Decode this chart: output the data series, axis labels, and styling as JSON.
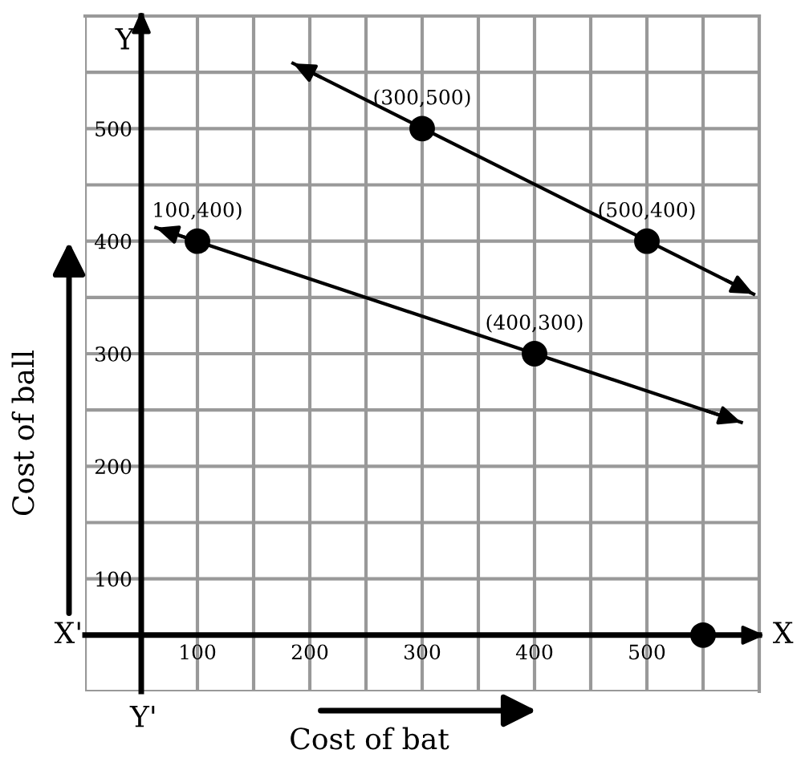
{
  "chart_data": {
    "type": "line",
    "xlabel": "Cost of bat",
    "ylabel": "Cost of ball",
    "xlim": [
      0,
      600
    ],
    "ylim": [
      0,
      600
    ],
    "xticks": [
      {
        "value": 0,
        "label": null
      },
      {
        "value": 50,
        "label": null
      },
      100,
      {
        "value": 150,
        "label": null
      },
      200,
      {
        "value": 250,
        "label": null
      },
      300,
      {
        "value": 350,
        "label": null
      },
      400,
      {
        "value": 450,
        "label": null
      },
      500,
      {
        "value": 550,
        "label": null
      },
      {
        "value": 600,
        "label": null
      }
    ],
    "yticks": [
      {
        "value": 0,
        "label": null
      },
      {
        "value": 50,
        "label": null
      },
      100,
      {
        "value": 150,
        "label": null
      },
      200,
      {
        "value": 250,
        "label": null
      },
      300,
      {
        "value": 350,
        "label": null
      },
      400,
      {
        "value": 450,
        "label": null
      },
      500,
      {
        "value": 550,
        "label": null
      },
      {
        "value": 600,
        "label": null
      }
    ],
    "grid": true,
    "series": [
      {
        "x": [
          185,
          595
        ],
        "values": [
          558,
          353
        ],
        "color": "#000000"
      },
      {
        "x": [
          63,
          584
        ],
        "values": [
          412,
          239
        ],
        "color": "#000000"
      },
      {
        "type": "scatter",
        "x": [
          100,
          300,
          400,
          500,
          550
        ],
        "values": [
          400,
          500,
          300,
          400,
          50
        ],
        "color": "#000000",
        "marker": "circle"
      }
    ],
    "annotations": [
      {
        "text": "(300,500)",
        "x": 300,
        "y": 500
      },
      {
        "text": "(500,400)",
        "x": 500,
        "y": 400
      },
      {
        "text": "100,400)",
        "x": 100,
        "y": 400
      },
      {
        "text": "(400,300)",
        "x": 400,
        "y": 300
      },
      "X",
      "X'",
      "Y",
      "Y'"
    ]
  }
}
